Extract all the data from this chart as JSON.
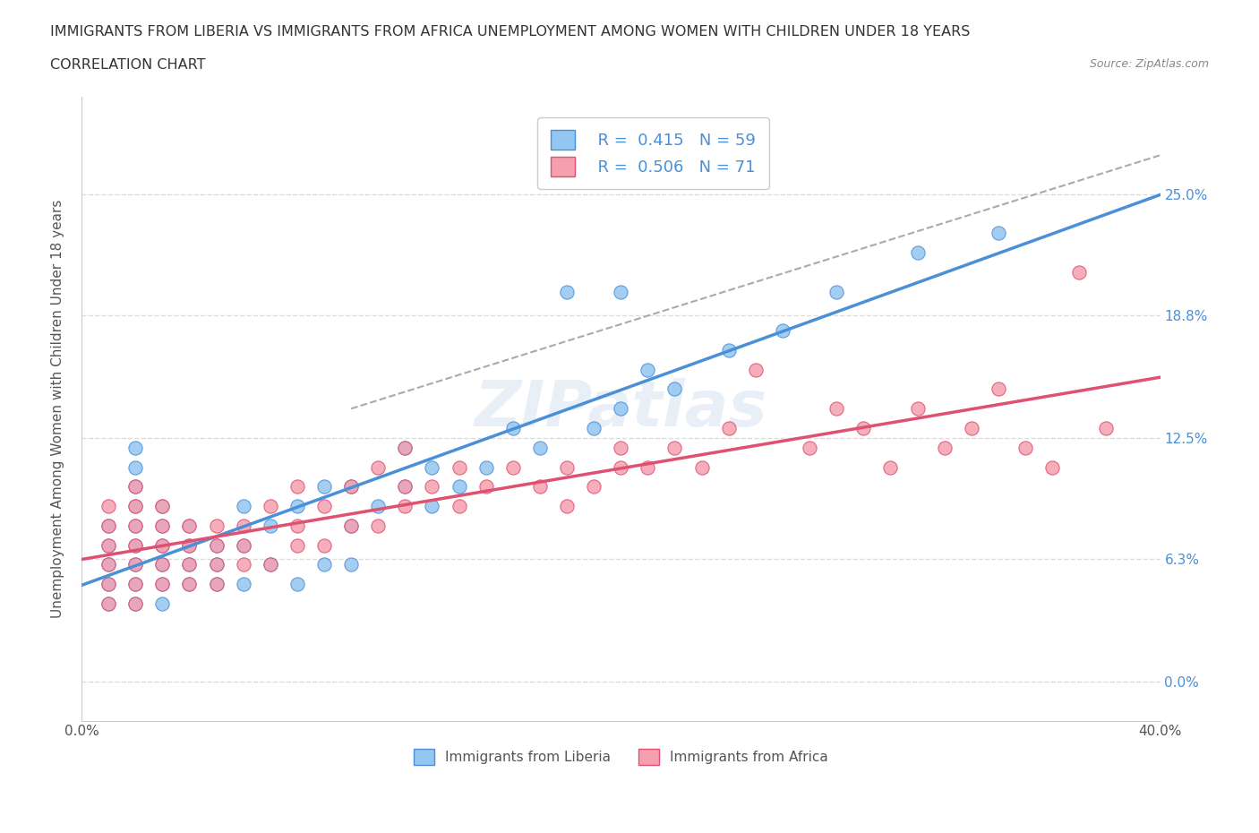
{
  "title_line1": "IMMIGRANTS FROM LIBERIA VS IMMIGRANTS FROM AFRICA UNEMPLOYMENT AMONG WOMEN WITH CHILDREN UNDER 18 YEARS",
  "title_line2": "CORRELATION CHART",
  "source": "Source: ZipAtlas.com",
  "xlabel": "",
  "ylabel": "Unemployment Among Women with Children Under 18 years",
  "xlim": [
    0.0,
    0.4
  ],
  "ylim": [
    -0.02,
    0.3
  ],
  "yticks": [
    0.0,
    0.063,
    0.125,
    0.188,
    0.25
  ],
  "ytick_labels": [
    "0.0%",
    "6.3%",
    "12.5%",
    "18.8%",
    "25.0%"
  ],
  "xticks": [
    0.0,
    0.1,
    0.2,
    0.3,
    0.4
  ],
  "xtick_labels": [
    "0.0%",
    "",
    "",
    "",
    "40.0%"
  ],
  "r_liberia": 0.415,
  "n_liberia": 59,
  "r_africa": 0.506,
  "n_africa": 71,
  "color_liberia": "#93c6f0",
  "color_africa": "#f5a0b0",
  "line_color_liberia": "#4a90d9",
  "line_color_africa": "#e05070",
  "line_color_dashed": "#aaaaaa",
  "background_color": "#ffffff",
  "grid_color": "#dddddd",
  "legend_text_color": "#4a90d9",
  "watermark": "ZIPatlas",
  "liberia_x": [
    0.01,
    0.01,
    0.01,
    0.01,
    0.01,
    0.02,
    0.02,
    0.02,
    0.02,
    0.02,
    0.02,
    0.02,
    0.02,
    0.02,
    0.03,
    0.03,
    0.03,
    0.03,
    0.03,
    0.03,
    0.04,
    0.04,
    0.04,
    0.04,
    0.05,
    0.05,
    0.05,
    0.06,
    0.06,
    0.06,
    0.07,
    0.07,
    0.08,
    0.08,
    0.09,
    0.09,
    0.1,
    0.1,
    0.1,
    0.11,
    0.12,
    0.12,
    0.13,
    0.13,
    0.14,
    0.15,
    0.16,
    0.17,
    0.18,
    0.19,
    0.2,
    0.2,
    0.21,
    0.22,
    0.24,
    0.26,
    0.28,
    0.31,
    0.34
  ],
  "liberia_y": [
    0.04,
    0.05,
    0.06,
    0.07,
    0.08,
    0.04,
    0.05,
    0.06,
    0.07,
    0.08,
    0.09,
    0.1,
    0.11,
    0.12,
    0.04,
    0.05,
    0.06,
    0.07,
    0.08,
    0.09,
    0.05,
    0.06,
    0.07,
    0.08,
    0.05,
    0.06,
    0.07,
    0.05,
    0.07,
    0.09,
    0.06,
    0.08,
    0.05,
    0.09,
    0.06,
    0.1,
    0.06,
    0.08,
    0.1,
    0.09,
    0.1,
    0.12,
    0.09,
    0.11,
    0.1,
    0.11,
    0.13,
    0.12,
    0.2,
    0.13,
    0.14,
    0.2,
    0.16,
    0.15,
    0.17,
    0.18,
    0.2,
    0.22,
    0.23
  ],
  "africa_x": [
    0.01,
    0.01,
    0.01,
    0.01,
    0.01,
    0.01,
    0.02,
    0.02,
    0.02,
    0.02,
    0.02,
    0.02,
    0.02,
    0.03,
    0.03,
    0.03,
    0.03,
    0.03,
    0.04,
    0.04,
    0.04,
    0.04,
    0.05,
    0.05,
    0.05,
    0.05,
    0.06,
    0.06,
    0.06,
    0.07,
    0.07,
    0.08,
    0.08,
    0.08,
    0.09,
    0.09,
    0.1,
    0.1,
    0.11,
    0.11,
    0.12,
    0.12,
    0.12,
    0.13,
    0.14,
    0.14,
    0.15,
    0.16,
    0.17,
    0.18,
    0.18,
    0.19,
    0.2,
    0.2,
    0.21,
    0.22,
    0.23,
    0.24,
    0.25,
    0.27,
    0.28,
    0.29,
    0.3,
    0.31,
    0.32,
    0.33,
    0.34,
    0.35,
    0.36,
    0.37,
    0.38
  ],
  "africa_y": [
    0.04,
    0.05,
    0.06,
    0.07,
    0.08,
    0.09,
    0.04,
    0.05,
    0.06,
    0.07,
    0.08,
    0.09,
    0.1,
    0.05,
    0.06,
    0.07,
    0.08,
    0.09,
    0.05,
    0.06,
    0.07,
    0.08,
    0.05,
    0.06,
    0.07,
    0.08,
    0.06,
    0.07,
    0.08,
    0.06,
    0.09,
    0.07,
    0.08,
    0.1,
    0.07,
    0.09,
    0.08,
    0.1,
    0.08,
    0.11,
    0.09,
    0.1,
    0.12,
    0.1,
    0.09,
    0.11,
    0.1,
    0.11,
    0.1,
    0.09,
    0.11,
    0.1,
    0.11,
    0.12,
    0.11,
    0.12,
    0.11,
    0.13,
    0.16,
    0.12,
    0.14,
    0.13,
    0.11,
    0.14,
    0.12,
    0.13,
    0.15,
    0.12,
    0.11,
    0.21,
    0.13
  ]
}
